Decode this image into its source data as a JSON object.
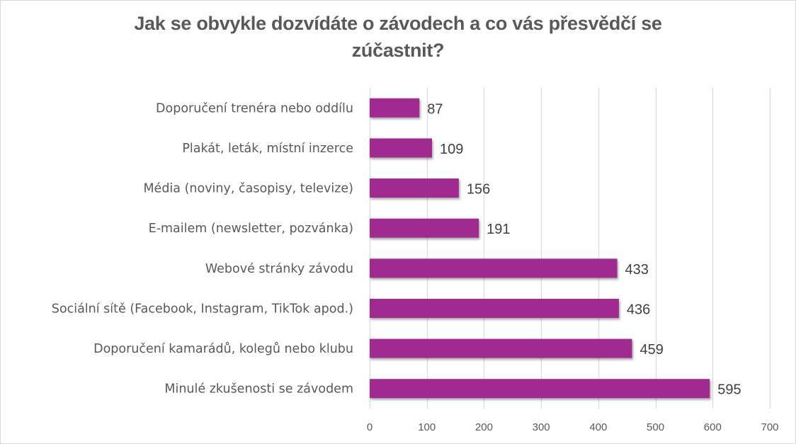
{
  "chart_data": {
    "type": "bar",
    "orientation": "horizontal",
    "title_lines": [
      "Jak se obvykle dozvídáte o závodech a co vás přesvědčí se",
      "zúčastnit?"
    ],
    "categories": [
      "Doporučení trenéra nebo oddílu",
      "Plakát, leták, místní inzerce",
      "Média (noviny, časopisy, televize)",
      "E-mailem (newsletter, pozvánka)",
      "Webové stránky závodu",
      "Sociální sítě (Facebook, Instagram, TikTok apod.)",
      "Doporučení kamarádů, kolegů nebo klubu",
      "Minulé zkušenosti se závodem"
    ],
    "values": [
      87,
      109,
      156,
      191,
      433,
      436,
      459,
      595
    ],
    "value_labels": [
      "87",
      "109",
      "156",
      "191",
      "433",
      "436",
      "459",
      "595"
    ],
    "xlim": [
      0,
      700
    ],
    "x_ticks": [
      0,
      100,
      200,
      300,
      400,
      500,
      600,
      700
    ],
    "x_tick_labels": [
      "0",
      "100",
      "200",
      "300",
      "400",
      "500",
      "600",
      "700"
    ],
    "xlabel": "",
    "ylabel": "",
    "grid": true,
    "legend": "none",
    "bar_color": "#a0298f",
    "grid_color": "#d9d9d9"
  }
}
